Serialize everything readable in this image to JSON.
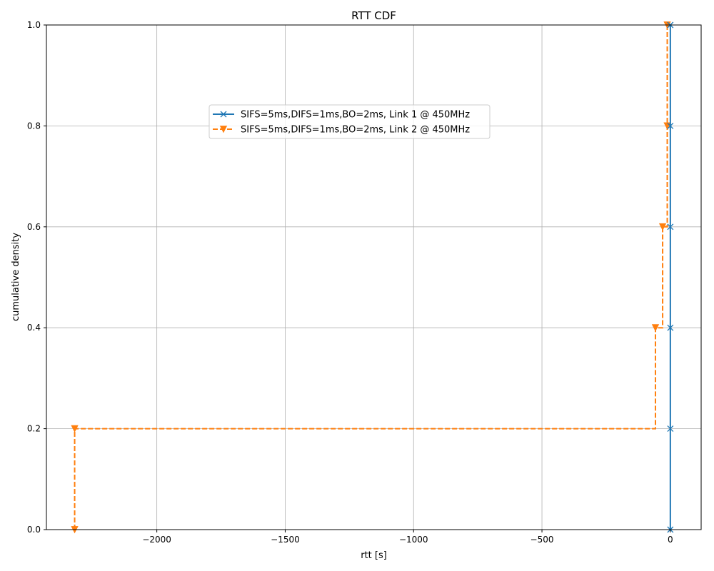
{
  "chart_data": {
    "type": "line",
    "step": "post",
    "title": "RTT CDF",
    "xlabel": "rtt [s]",
    "ylabel": "cumulative density",
    "xlim": [
      -2430,
      120
    ],
    "ylim": [
      0.0,
      1.0
    ],
    "grid": true,
    "legend_position": "upper-center",
    "x_ticks": [
      -2000,
      -1500,
      -1000,
      -500,
      0
    ],
    "x_tick_labels": [
      "−2000",
      "−1500",
      "−1000",
      "−500",
      "0"
    ],
    "y_ticks": [
      0.0,
      0.2,
      0.4,
      0.6,
      0.8,
      1.0
    ],
    "y_tick_labels": [
      "0.0",
      "0.2",
      "0.4",
      "0.6",
      "0.8",
      "1.0"
    ],
    "series": [
      {
        "name": "SIFS=5ms,DIFS=1ms,BO=2ms, Link 1 @ 450MHz",
        "color": "#1f77b4",
        "linestyle": "solid",
        "marker": "x",
        "x": [
          0,
          0,
          0,
          0,
          0,
          0
        ],
        "y": [
          0.0,
          0.2,
          0.4,
          0.6,
          0.8,
          1.0
        ]
      },
      {
        "name": "SIFS=5ms,DIFS=1ms,BO=2ms, Link 2 @ 450MHz",
        "color": "#ff7f0e",
        "linestyle": "dashed",
        "marker": "triangle-down",
        "x": [
          -2320,
          -2320,
          -58,
          -30,
          -12,
          -12
        ],
        "y": [
          0.0,
          0.2,
          0.4,
          0.6,
          0.8,
          1.0
        ]
      }
    ]
  }
}
